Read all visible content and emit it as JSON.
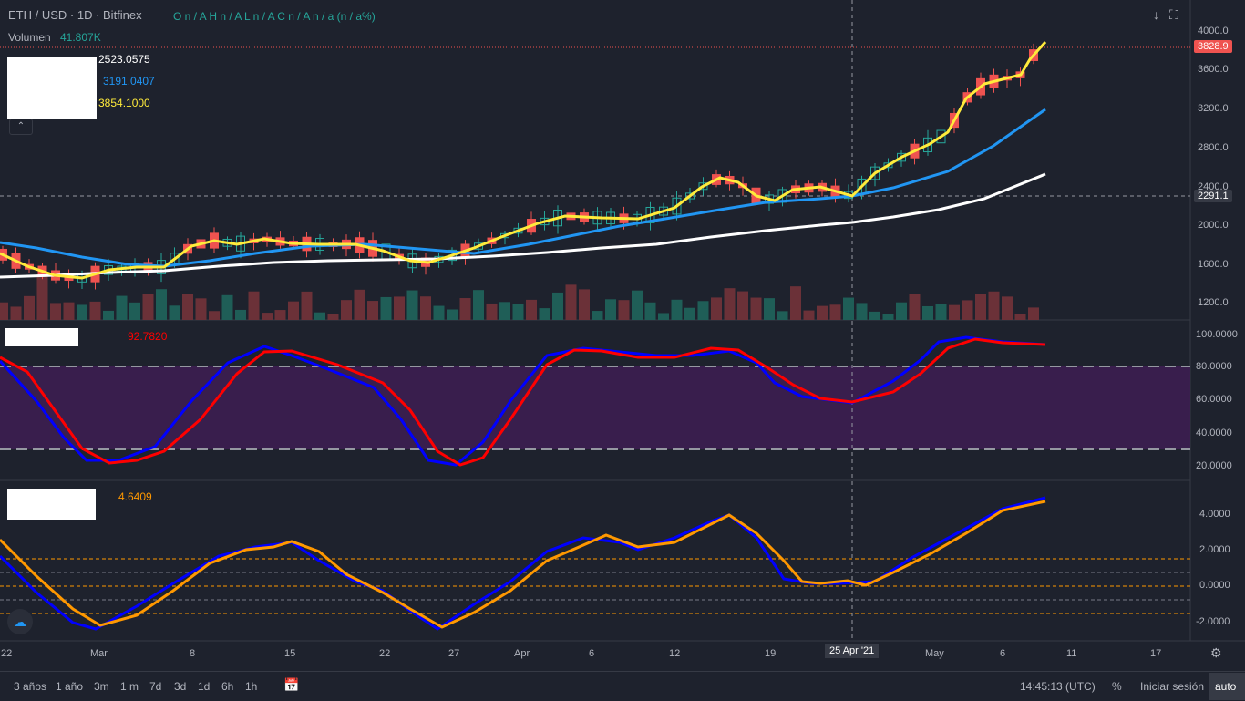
{
  "header": {
    "symbol": "ETH / USD · 1D · Bitfinex",
    "ohlc": "O n / A  H n / A  L n / A  C n / A  n / a (n / a%)",
    "volume_label": "Volumen",
    "volume_value": "41.807K",
    "ma1_value": "2523.0575",
    "ma2_value": "3191.0407",
    "ma3_value": "3854.1000",
    "stoch_d_value": "92.7820",
    "osc_value": "4.6409"
  },
  "price_axis": {
    "labels": [
      "4000.0",
      "3600.0",
      "3200.0",
      "2800.0",
      "2400.0",
      "2000.0",
      "1600.0",
      "1200.0"
    ],
    "last_price": "3828.9",
    "crosshair_price": "2291.1"
  },
  "stoch_axis": {
    "labels": [
      "100.0000",
      "80.0000",
      "60.0000",
      "40.0000",
      "20.0000"
    ]
  },
  "osc_axis": {
    "labels": [
      "4.0000",
      "2.0000",
      "0.0000",
      "-2.0000"
    ]
  },
  "time_axis": {
    "labels": [
      "22",
      "Mar",
      "8",
      "15",
      "22",
      "27",
      "Apr",
      "6",
      "12",
      "19",
      "May",
      "6",
      "11",
      "17"
    ],
    "crosshair_date": "25 Apr '21"
  },
  "bottom_toolbar": {
    "ranges": [
      "3 años",
      "1 año",
      "3m",
      "1 m",
      "7d",
      "3d",
      "1d",
      "6h",
      "1h"
    ],
    "clock": "14:45:13 (UTC)",
    "percent": "%",
    "login": "Iniciar sesión",
    "auto": "auto"
  },
  "colors": {
    "background": "#1e222d",
    "up": "#26a69a",
    "down": "#ef5350",
    "ma_fast": "#ffeb3b",
    "ma_mid": "#2196f3",
    "ma_slow": "#ffffff",
    "stoch_k": "#0000ff",
    "stoch_d": "#ff0000",
    "osc_fast": "#0000ff",
    "osc_slow": "#ff9800",
    "stoch_band": "#3b1f4f"
  },
  "chart_data": [
    {
      "type": "candlestick",
      "title": "ETH / USD · 1D · Bitfinex",
      "ylim": [
        1000,
        4200
      ],
      "series": [
        {
          "name": "close",
          "x": [
            "Feb 22",
            "Mar 1",
            "Mar 8",
            "Mar 15",
            "Mar 22",
            "Mar 27",
            "Apr 1",
            "Apr 6",
            "Apr 12",
            "Apr 19",
            "Apr 25",
            "May 1",
            "May 6",
            "May 9"
          ],
          "values": [
            1800,
            1460,
            1830,
            1790,
            1700,
            1550,
            1900,
            2050,
            2150,
            2400,
            2300,
            2750,
            3500,
            3828.9
          ]
        }
      ]
    },
    {
      "type": "line",
      "ylim": [
        10,
        100
      ],
      "series": [
        {
          "name": "",
          "values": [
            86,
            30,
            24,
            75,
            90,
            80,
            55,
            22,
            20,
            40,
            85,
            90,
            86,
            90,
            75,
            58,
            64,
            85,
            97,
            94,
            92.78
          ]
        }
      ]
    },
    {
      "type": "line",
      "ylim": [
        -3,
        6
      ],
      "series": [
        {
          "name": "",
          "values": [
            2.7,
            0,
            -2.2,
            0,
            2.0,
            2.4,
            0,
            -1.0,
            -2.3,
            0,
            2.0,
            2.8,
            2.0,
            3.2,
            4.0,
            0.8,
            0.3,
            0.1,
            2.5,
            4.2,
            4.6409
          ]
        }
      ]
    }
  ]
}
